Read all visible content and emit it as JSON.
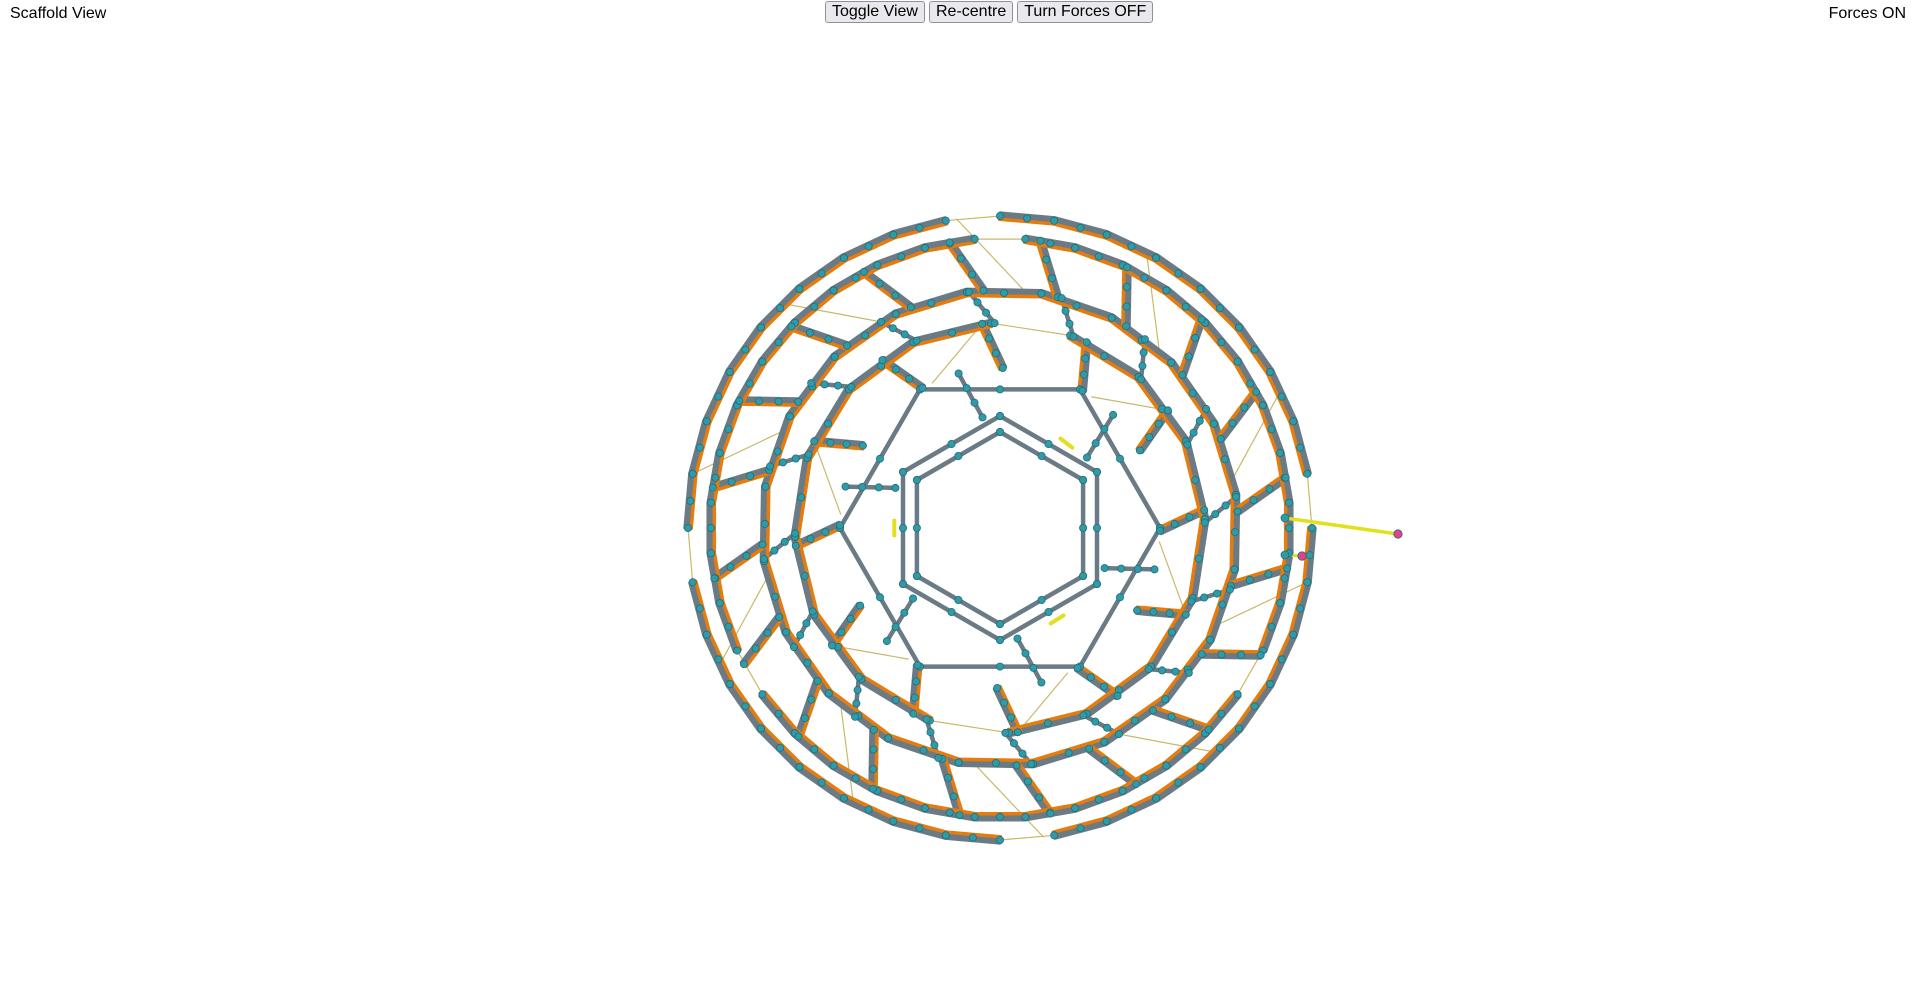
{
  "header": {
    "view_label": "Scaffold View",
    "forces_status": "Forces ON"
  },
  "toolbar": {
    "buttons": [
      {
        "label": "Toggle View"
      },
      {
        "label": "Re-centre"
      },
      {
        "label": "Turn Forces OFF"
      }
    ]
  },
  "scene": {
    "colors": {
      "backbone": "#6b7b86",
      "staple": "#e57c0f",
      "node": "#2f9aa8",
      "node_edge": "#1f6f7a",
      "crossover": "#c9b96a",
      "highlight": "#e2e01c",
      "tip": "#e83e8c"
    }
  }
}
